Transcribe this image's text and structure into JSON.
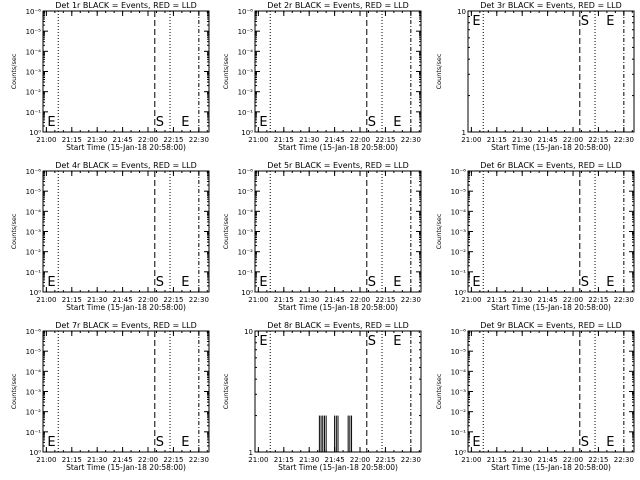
{
  "chart_data": [
    {
      "type": "line",
      "title": "Det 1r BLACK = Events, RED = LLD",
      "xlabel": "Start Time (15-Jan-18 20:58:00)",
      "ylabel": "Counts/sec",
      "yscale": "log",
      "ylim_exp": [
        0,
        6
      ],
      "y_tick_labels": [
        "10⁰",
        "10⁻¹",
        "10⁻²",
        "10⁻³",
        "10⁻⁴",
        "10⁻⁵",
        "10⁻⁶"
      ],
      "x_tick_labels": [
        "21:00",
        "21:15",
        "21:30",
        "21:45",
        "22:00",
        "22:15",
        "22:30"
      ],
      "markers": [
        {
          "label": "E",
          "at": "21:00"
        },
        {
          "label": "S",
          "at": "22:04"
        },
        {
          "label": "E",
          "at": "22:19"
        }
      ],
      "series": []
    },
    {
      "type": "line",
      "title": "Det 2r BLACK = Events, RED = LLD",
      "xlabel": "Start Time (15-Jan-18 20:58:00)",
      "ylabel": "Counts/sec",
      "yscale": "log",
      "ylim_exp": [
        0,
        6
      ],
      "y_tick_labels": [
        "10⁰",
        "10⁻¹",
        "10⁻²",
        "10⁻³",
        "10⁻⁴",
        "10⁻⁵",
        "10⁻⁶"
      ],
      "x_tick_labels": [
        "21:00",
        "21:15",
        "21:30",
        "21:45",
        "22:00",
        "22:15",
        "22:30"
      ],
      "markers": [
        {
          "label": "E",
          "at": "21:00"
        },
        {
          "label": "S",
          "at": "22:04"
        },
        {
          "label": "E",
          "at": "22:19"
        }
      ],
      "series": []
    },
    {
      "type": "line",
      "title": "Det 3r BLACK = Events, RED = LLD",
      "xlabel": "Start Time (15-Jan-18 20:58:00)",
      "ylabel": "Counts/sec",
      "yscale": "log",
      "ylim_exp": [
        0,
        1
      ],
      "y_tick_labels": [
        "1",
        "10"
      ],
      "x_tick_labels": [
        "21:00",
        "21:15",
        "21:30",
        "21:45",
        "22:00",
        "22:15",
        "22:30"
      ],
      "markers": [
        {
          "label": "E",
          "at": "21:00"
        },
        {
          "label": "S",
          "at": "22:04"
        },
        {
          "label": "E",
          "at": "22:19"
        }
      ],
      "series": []
    },
    {
      "type": "line",
      "title": "Det 4r BLACK = Events, RED = LLD",
      "xlabel": "Start Time (15-Jan-18 20:58:00)",
      "ylabel": "Counts/sec",
      "yscale": "log",
      "ylim_exp": [
        0,
        6
      ],
      "y_tick_labels": [
        "10⁰",
        "10⁻¹",
        "10⁻²",
        "10⁻³",
        "10⁻⁴",
        "10⁻⁵",
        "10⁻⁶"
      ],
      "x_tick_labels": [
        "21:00",
        "21:15",
        "21:30",
        "21:45",
        "22:00",
        "22:15",
        "22:30"
      ],
      "markers": [
        {
          "label": "E",
          "at": "21:00"
        },
        {
          "label": "S",
          "at": "22:04"
        },
        {
          "label": "E",
          "at": "22:19"
        }
      ],
      "series": []
    },
    {
      "type": "line",
      "title": "Det 5r BLACK = Events, RED = LLD",
      "xlabel": "Start Time (15-Jan-18 20:58:00)",
      "ylabel": "Counts/sec",
      "yscale": "log",
      "ylim_exp": [
        0,
        6
      ],
      "y_tick_labels": [
        "10⁰",
        "10⁻¹",
        "10⁻²",
        "10⁻³",
        "10⁻⁴",
        "10⁻⁵",
        "10⁻⁶"
      ],
      "x_tick_labels": [
        "21:00",
        "21:15",
        "21:30",
        "21:45",
        "22:00",
        "22:15",
        "22:30"
      ],
      "markers": [
        {
          "label": "E",
          "at": "21:00"
        },
        {
          "label": "S",
          "at": "22:04"
        },
        {
          "label": "E",
          "at": "22:19"
        }
      ],
      "series": []
    },
    {
      "type": "line",
      "title": "Det 6r BLACK = Events, RED = LLD",
      "xlabel": "Start Time (15-Jan-18 20:58:00)",
      "ylabel": "Counts/sec",
      "yscale": "log",
      "ylim_exp": [
        0,
        6
      ],
      "y_tick_labels": [
        "10⁰",
        "10⁻¹",
        "10⁻²",
        "10⁻³",
        "10⁻⁴",
        "10⁻⁵",
        "10⁻⁶"
      ],
      "x_tick_labels": [
        "21:00",
        "21:15",
        "21:30",
        "21:45",
        "22:00",
        "22:15",
        "22:30"
      ],
      "markers": [
        {
          "label": "E",
          "at": "21:00"
        },
        {
          "label": "S",
          "at": "22:04"
        },
        {
          "label": "E",
          "at": "22:19"
        }
      ],
      "series": []
    },
    {
      "type": "line",
      "title": "Det 7r BLACK = Events, RED = LLD",
      "xlabel": "Start Time (15-Jan-18 20:58:00)",
      "ylabel": "Counts/sec",
      "yscale": "log",
      "ylim_exp": [
        0,
        6
      ],
      "y_tick_labels": [
        "10⁰",
        "10⁻¹",
        "10⁻²",
        "10⁻³",
        "10⁻⁴",
        "10⁻⁵",
        "10⁻⁶"
      ],
      "x_tick_labels": [
        "21:00",
        "21:15",
        "21:30",
        "21:45",
        "22:00",
        "22:15",
        "22:30"
      ],
      "markers": [
        {
          "label": "E",
          "at": "21:00"
        },
        {
          "label": "S",
          "at": "22:04"
        },
        {
          "label": "E",
          "at": "22:19"
        }
      ],
      "series": []
    },
    {
      "type": "line",
      "title": "Det 8r BLACK = Events, RED = LLD",
      "xlabel": "Start Time (15-Jan-18 20:58:00)",
      "ylabel": "Counts/sec",
      "yscale": "log",
      "ylim_exp": [
        0,
        1
      ],
      "y_tick_labels": [
        "1",
        "10"
      ],
      "x_tick_labels": [
        "21:00",
        "21:15",
        "21:30",
        "21:45",
        "22:00",
        "22:15",
        "22:30"
      ],
      "markers": [
        {
          "label": "E",
          "at": "21:00"
        },
        {
          "label": "S",
          "at": "22:04"
        },
        {
          "label": "E",
          "at": "22:19"
        }
      ],
      "series": [
        {
          "color": "#000000",
          "spikes": [
            {
              "t": "21:36",
              "v": 2
            },
            {
              "t": "21:37",
              "v": 2
            },
            {
              "t": "21:38",
              "v": 2
            },
            {
              "t": "21:39",
              "v": 2
            },
            {
              "t": "21:40",
              "v": 2
            },
            {
              "t": "21:45",
              "v": 2
            },
            {
              "t": "21:46",
              "v": 2
            },
            {
              "t": "21:47",
              "v": 2
            },
            {
              "t": "21:53",
              "v": 2
            },
            {
              "t": "21:54",
              "v": 2
            },
            {
              "t": "21:55",
              "v": 2
            }
          ]
        }
      ]
    },
    {
      "type": "line",
      "title": "Det 9r BLACK = Events, RED = LLD",
      "xlabel": "Start Time (15-Jan-18 20:58:00)",
      "ylabel": "Counts/sec",
      "yscale": "log",
      "ylim_exp": [
        0,
        6
      ],
      "y_tick_labels": [
        "10⁰",
        "10⁻¹",
        "10⁻²",
        "10⁻³",
        "10⁻⁴",
        "10⁻⁵",
        "10⁻⁶"
      ],
      "x_tick_labels": [
        "21:00",
        "21:15",
        "21:30",
        "21:45",
        "22:00",
        "22:15",
        "22:30"
      ],
      "markers": [
        {
          "label": "E",
          "at": "21:00"
        },
        {
          "label": "S",
          "at": "22:04"
        },
        {
          "label": "E",
          "at": "22:19"
        }
      ],
      "series": []
    }
  ]
}
